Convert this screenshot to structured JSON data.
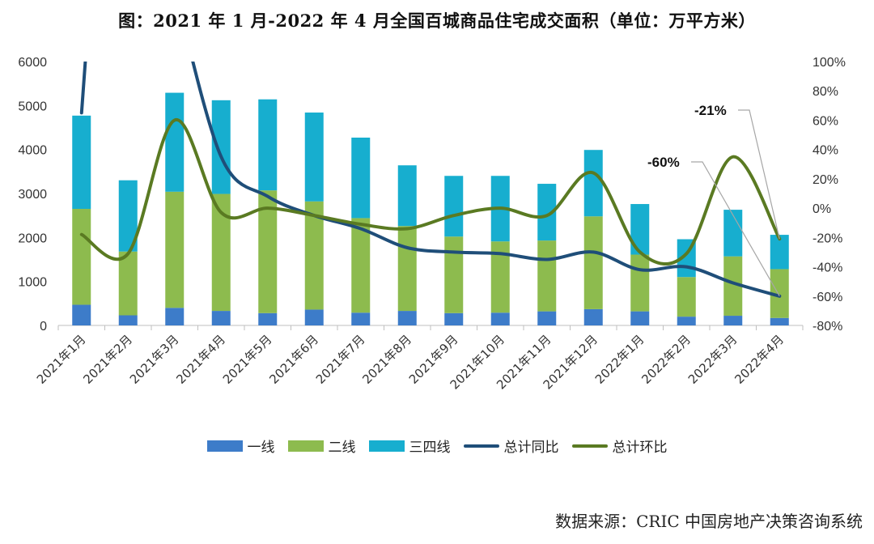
{
  "chart_data": {
    "type": "bar",
    "stacked": true,
    "title": "图：2021 年 1 月-2022 年 4 月全国百城商品住宅成交面积（单位：万平方米）",
    "categories": [
      "2021年1月",
      "2021年2月",
      "2021年3月",
      "2021年4月",
      "2021年5月",
      "2021年6月",
      "2021年7月",
      "2021年8月",
      "2021年9月",
      "2021年10月",
      "2021年11月",
      "2021年12月",
      "2022年1月",
      "2022年2月",
      "2022年3月",
      "2022年4月"
    ],
    "y_left": {
      "ylim": [
        0,
        6000
      ],
      "ticks": [
        "0",
        "1000",
        "2000",
        "3000",
        "4000",
        "5000",
        "6000"
      ]
    },
    "y_right": {
      "ylim": [
        -80,
        100
      ],
      "ticks": [
        "100%",
        "80%",
        "60%",
        "40%",
        "20%",
        "0%",
        "-20%",
        "-40%",
        "-60%",
        "-80%"
      ]
    },
    "bar_series": [
      {
        "name": "一线",
        "color": "#3d7cc9",
        "values": [
          470,
          230,
          400,
          330,
          280,
          360,
          290,
          330,
          280,
          290,
          320,
          370,
          320,
          200,
          220,
          170
        ]
      },
      {
        "name": "二线",
        "color": "#8dbb4e",
        "values": [
          2180,
          1450,
          2640,
          2660,
          2790,
          2460,
          2150,
          1930,
          1740,
          1620,
          1610,
          2110,
          1290,
          900,
          1350,
          1110
        ]
      },
      {
        "name": "三四线",
        "color": "#17aecf",
        "values": [
          2120,
          1620,
          2250,
          2130,
          2070,
          2020,
          1830,
          1380,
          1380,
          1490,
          1290,
          1510,
          1150,
          860,
          1060,
          780
        ]
      }
    ],
    "line_series": [
      {
        "name": "总计同比",
        "color": "#1f4e79",
        "values": [
          65,
          null,
          null,
          35,
          8,
          -5,
          -14,
          -27,
          -30,
          -31,
          -35,
          -30,
          -42,
          -40,
          -51,
          -60
        ]
      },
      {
        "name": "总计环比",
        "color": "#5a7a22",
        "values": [
          -18,
          -31,
          60,
          -3,
          0,
          -5,
          -11,
          -14,
          -5,
          0,
          -5,
          24,
          -30,
          -31,
          35,
          -21
        ]
      }
    ],
    "annotations": [
      "-21%",
      "-60%"
    ],
    "legend": [
      "一线",
      "二线",
      "三四线",
      "总计同比",
      "总计环比"
    ],
    "legend_position": "bottom",
    "grid": false
  },
  "source": "数据来源：CRIC 中国房地产决策咨询系统"
}
